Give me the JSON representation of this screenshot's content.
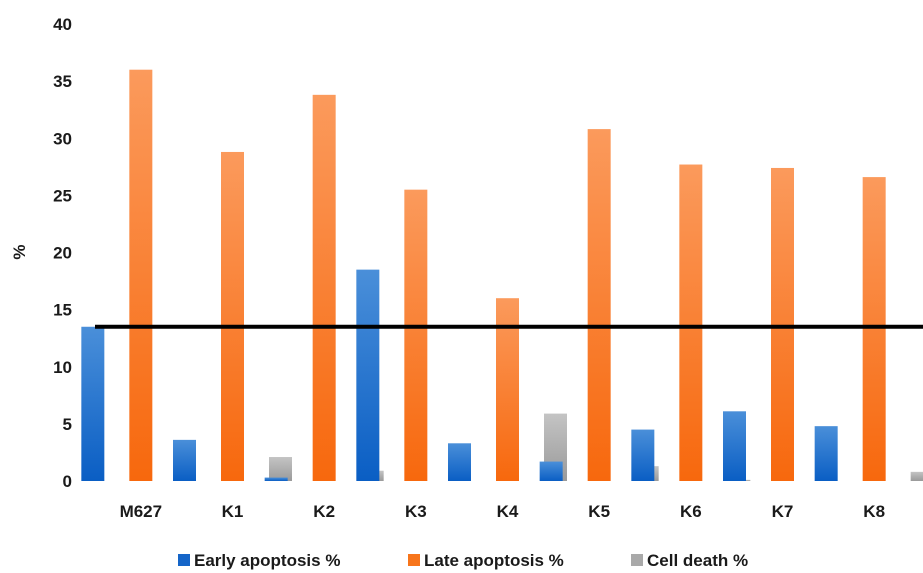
{
  "chart_data": {
    "type": "bar",
    "title": "",
    "xlabel": "",
    "ylabel": "%",
    "ylim": [
      0,
      40
    ],
    "yticks": [
      0,
      5,
      10,
      15,
      20,
      25,
      30,
      35,
      40
    ],
    "grid": false,
    "legend_position": "bottom",
    "categories": [
      "M627",
      "K1",
      "K2",
      "K3",
      "K4",
      "K5",
      "K6",
      "K7",
      "K8"
    ],
    "series": [
      {
        "name": "Early apoptosis %",
        "color": "#1565c8",
        "values": [
          13.5,
          3.6,
          0.3,
          18.5,
          3.3,
          1.7,
          4.5,
          6.1,
          4.8
        ]
      },
      {
        "name": "Late apoptosis %",
        "color": "#f7751b",
        "values": [
          36.0,
          28.8,
          33.8,
          25.5,
          16.0,
          30.8,
          27.7,
          27.4,
          26.6
        ]
      },
      {
        "name": "Cell death %",
        "color": "#a9a9a9",
        "values": [
          0,
          2.1,
          0.9,
          0,
          5.9,
          1.3,
          0.1,
          0,
          0.8
        ]
      }
    ],
    "reference_line": {
      "value": 13.5,
      "color": "#000000"
    }
  }
}
